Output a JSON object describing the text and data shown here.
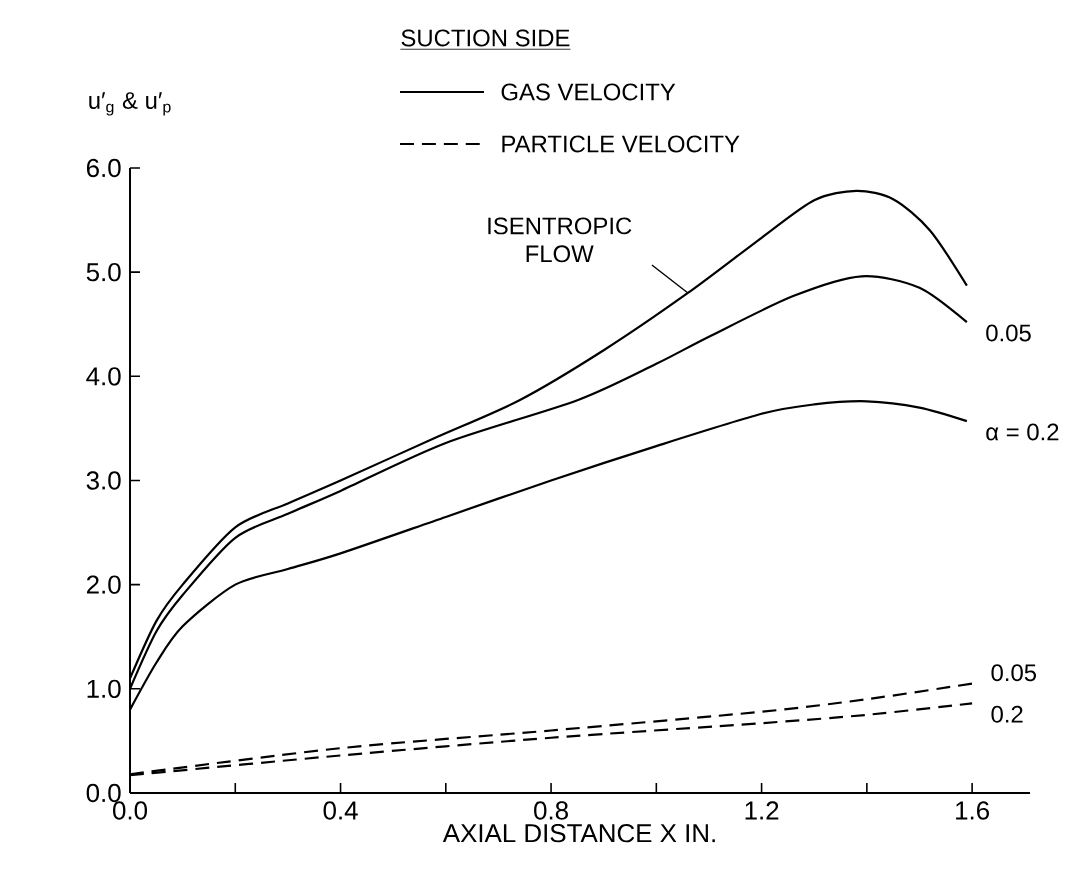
{
  "chart_data": {
    "type": "line",
    "legend_title": "SUCTION SIDE",
    "xlabel": "AXIAL DISTANCE X IN.",
    "ylabel": "u′$_{g}$ & u′$_{p}$",
    "xlim": [
      0,
      1.71
    ],
    "ylim": [
      0,
      6.0
    ],
    "xticks": [
      {
        "value": 0,
        "label": "0.0"
      },
      {
        "value": 0.2,
        "label": null
      },
      {
        "value": 0.4,
        "label": "0.4"
      },
      {
        "value": 0.6,
        "label": null
      },
      {
        "value": 0.8,
        "label": "0.8"
      },
      {
        "value": 1.0,
        "label": null
      },
      {
        "value": 1.2,
        "label": "1.2"
      },
      {
        "value": 1.4,
        "label": null
      },
      {
        "value": 1.6,
        "label": "1.6"
      }
    ],
    "yticks": [
      {
        "value": 0,
        "label": "0.0"
      },
      {
        "value": 1,
        "label": "1.0"
      },
      {
        "value": 2,
        "label": "2.0"
      },
      {
        "value": 3,
        "label": "3.0"
      },
      {
        "value": 4,
        "label": "4.0"
      },
      {
        "value": 5,
        "label": "5.0"
      },
      {
        "value": 6,
        "label": "6.0"
      }
    ],
    "legend": "top",
    "marker": "none",
    "series": [
      {
        "color": "#000000",
        "line_style": "solid",
        "x": [
          0,
          0.05,
          0.1,
          0.2,
          0.3,
          0.4,
          0.58,
          0.74,
          0.9,
          1.06,
          1.2,
          1.3,
          1.38,
          1.45,
          1.52,
          1.59
        ],
        "values": [
          1.1,
          1.65,
          2.0,
          2.55,
          2.78,
          3.0,
          3.41,
          3.77,
          4.25,
          4.8,
          5.33,
          5.69,
          5.78,
          5.7,
          5.4,
          4.87
        ]
      },
      {
        "name": "GAS VELOCITY",
        "color": "#000000",
        "line_style": "solid",
        "x": [
          0,
          0.05,
          0.1,
          0.2,
          0.3,
          0.4,
          0.6,
          0.85,
          1.0,
          1.1,
          1.26,
          1.39,
          1.5,
          1.59
        ],
        "values": [
          1.0,
          1.55,
          1.9,
          2.45,
          2.68,
          2.9,
          3.36,
          3.77,
          4.12,
          4.38,
          4.77,
          4.96,
          4.85,
          4.52
        ]
      },
      {
        "color": "#000000",
        "line_style": "solid",
        "x": [
          0,
          0.05,
          0.1,
          0.2,
          0.3,
          0.4,
          0.6,
          0.8,
          1.0,
          1.2,
          1.3,
          1.4,
          1.5,
          1.59
        ],
        "values": [
          0.8,
          1.25,
          1.6,
          2.0,
          2.15,
          2.3,
          2.65,
          3.0,
          3.33,
          3.64,
          3.73,
          3.76,
          3.7,
          3.57
        ]
      },
      {
        "name": "PARTICLE VELOCITY",
        "color": "#000000",
        "line_style": "dashed",
        "x": [
          0,
          0.4,
          0.8,
          1.2,
          1.4,
          1.6
        ],
        "values": [
          0.18,
          0.43,
          0.6,
          0.78,
          0.9,
          1.05
        ]
      },
      {
        "color": "#000000",
        "line_style": "dashed",
        "x": [
          0,
          0.4,
          0.8,
          1.2,
          1.4,
          1.6
        ],
        "values": [
          0.17,
          0.36,
          0.53,
          0.67,
          0.75,
          0.86
        ]
      }
    ],
    "annotations": [
      {
        "text": "ISENTROPIC FLOW",
        "x": 1.06,
        "y": 4.8
      },
      {
        "text": "0.05",
        "x": 1.59,
        "y": 4.52
      },
      {
        "text": "α = 0.2",
        "x": 1.59,
        "y": 3.57
      },
      {
        "text": "0.05",
        "x": 1.6,
        "y": 1.05
      },
      {
        "text": "0.2",
        "x": 1.6,
        "y": 0.86
      }
    ]
  }
}
